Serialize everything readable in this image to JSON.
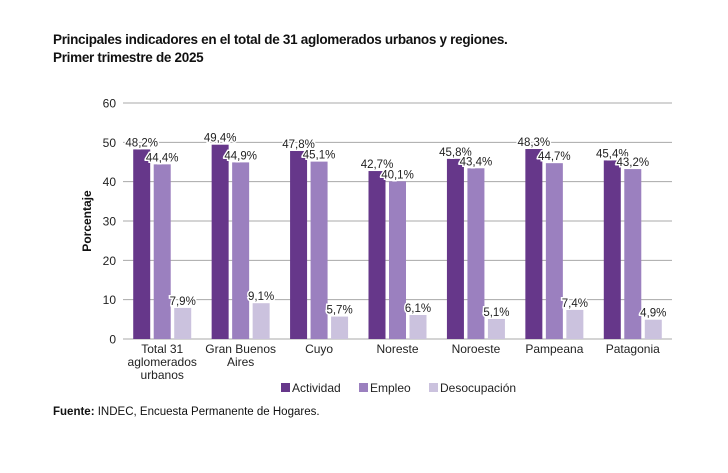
{
  "chart_data": {
    "type": "bar",
    "title": "Principales indicadores en el total de 31 aglomerados urbanos y regiones.",
    "subtitle": "Primer trimestre de 2025",
    "ylabel": "Porcentaje",
    "xlabel": "",
    "ylim": [
      0,
      60
    ],
    "yticks": [
      0,
      10,
      20,
      30,
      40,
      50,
      60
    ],
    "grid": true,
    "legend_position": "bottom",
    "categories": [
      [
        "Total 31",
        "aglomerados",
        "urbanos"
      ],
      [
        "Gran Buenos",
        "Aires"
      ],
      [
        "Cuyo"
      ],
      [
        "Noreste"
      ],
      [
        "Noroeste"
      ],
      [
        "Pampeana"
      ],
      [
        "Patagonia"
      ]
    ],
    "series": [
      {
        "name": "Actividad",
        "color": "#66378a",
        "values": [
          48.2,
          49.4,
          47.8,
          42.7,
          45.8,
          48.3,
          45.4
        ],
        "labels": [
          "48,2%",
          "49,4%",
          "47,8%",
          "42,7%",
          "45,8%",
          "48,3%",
          "45,4%"
        ]
      },
      {
        "name": "Empleo",
        "color": "#9b80bf",
        "values": [
          44.4,
          44.9,
          45.1,
          40.1,
          43.4,
          44.7,
          43.2
        ],
        "labels": [
          "44,4%",
          "44,9%",
          "45,1%",
          "40,1%",
          "43,4%",
          "44,7%",
          "43,2%"
        ]
      },
      {
        "name": "Desocupación",
        "color": "#cbc2de",
        "values": [
          7.9,
          9.1,
          5.7,
          6.1,
          5.1,
          7.4,
          4.9
        ],
        "labels": [
          "7,9%",
          "9,1%",
          "5,7%",
          "6,1%",
          "5,1%",
          "7,4%",
          "4,9%"
        ]
      }
    ]
  },
  "source": {
    "label": "Fuente:",
    "text": " INDEC, Encuesta Permanente de Hogares."
  }
}
